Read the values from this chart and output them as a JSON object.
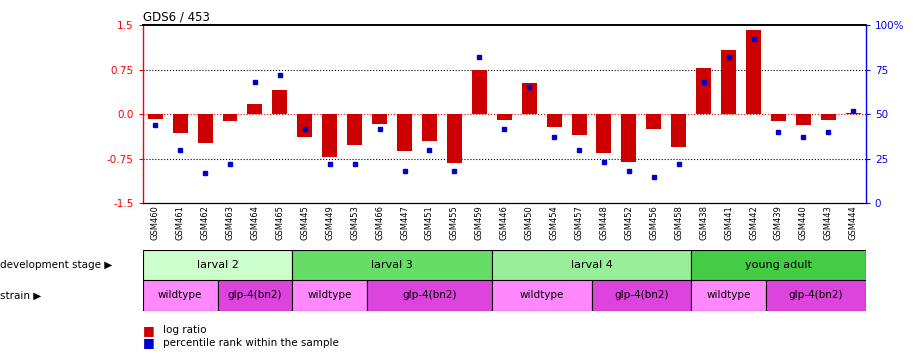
{
  "title": "GDS6 / 453",
  "samples": [
    "GSM460",
    "GSM461",
    "GSM462",
    "GSM463",
    "GSM464",
    "GSM465",
    "GSM445",
    "GSM449",
    "GSM453",
    "GSM466",
    "GSM447",
    "GSM451",
    "GSM455",
    "GSM459",
    "GSM446",
    "GSM450",
    "GSM454",
    "GSM457",
    "GSM448",
    "GSM452",
    "GSM456",
    "GSM458",
    "GSM438",
    "GSM441",
    "GSM442",
    "GSM439",
    "GSM440",
    "GSM443",
    "GSM444"
  ],
  "log_ratio": [
    -0.08,
    -0.32,
    -0.48,
    -0.12,
    0.18,
    0.4,
    -0.38,
    -0.72,
    -0.52,
    -0.16,
    -0.62,
    -0.45,
    -0.82,
    0.75,
    -0.1,
    0.52,
    -0.22,
    -0.35,
    -0.65,
    -0.8,
    -0.25,
    -0.55,
    0.78,
    1.08,
    1.42,
    -0.12,
    -0.18,
    -0.1,
    0.02
  ],
  "percentile": [
    44,
    30,
    17,
    22,
    68,
    72,
    42,
    22,
    22,
    42,
    18,
    30,
    18,
    82,
    42,
    65,
    37,
    30,
    23,
    18,
    15,
    22,
    68,
    82,
    92,
    40,
    37,
    40,
    52
  ],
  "dev_stage_groups": [
    {
      "label": "larval 2",
      "start": 0,
      "end": 6,
      "color": "#ccffcc"
    },
    {
      "label": "larval 3",
      "start": 6,
      "end": 14,
      "color": "#66dd66"
    },
    {
      "label": "larval 4",
      "start": 14,
      "end": 22,
      "color": "#99ee99"
    },
    {
      "label": "young adult",
      "start": 22,
      "end": 29,
      "color": "#44cc44"
    }
  ],
  "strain_groups": [
    {
      "label": "wildtype",
      "start": 0,
      "end": 3,
      "color": "#ff88ff"
    },
    {
      "label": "glp-4(bn2)",
      "start": 3,
      "end": 6,
      "color": "#dd44dd"
    },
    {
      "label": "wildtype",
      "start": 6,
      "end": 9,
      "color": "#ff88ff"
    },
    {
      "label": "glp-4(bn2)",
      "start": 9,
      "end": 14,
      "color": "#dd44dd"
    },
    {
      "label": "wildtype",
      "start": 14,
      "end": 18,
      "color": "#ff88ff"
    },
    {
      "label": "glp-4(bn2)",
      "start": 18,
      "end": 22,
      "color": "#dd44dd"
    },
    {
      "label": "wildtype",
      "start": 22,
      "end": 25,
      "color": "#ff88ff"
    },
    {
      "label": "glp-4(bn2)",
      "start": 25,
      "end": 29,
      "color": "#dd44dd"
    }
  ],
  "bar_color": "#cc0000",
  "dot_color": "#0000cc",
  "ylim_left": [
    -1.5,
    1.5
  ],
  "ylim_right": [
    0,
    100
  ],
  "yticks_left": [
    -1.5,
    -0.75,
    0.0,
    0.75,
    1.5
  ],
  "yticks_right": [
    0,
    25,
    50,
    75,
    100
  ],
  "hlines_dotted": [
    -0.75,
    0.75
  ],
  "hline_zero": 0.0
}
